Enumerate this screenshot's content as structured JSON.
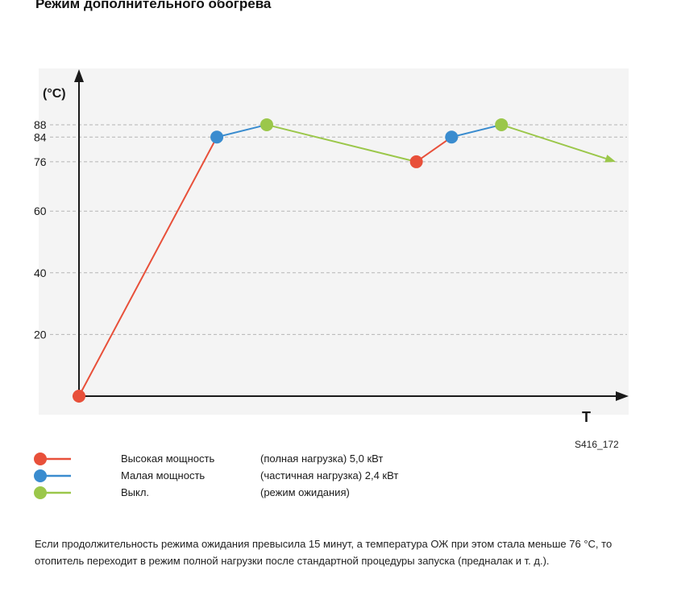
{
  "page": {
    "title": "Режим дополнительного обогрева",
    "figure_code": "S416_172",
    "note": "Если продолжительность режима ожидания превысила 15 минут, а температура ОЖ при этом стала меньше 76 °C, то отопитель переходит в режим полной нагрузки после стандартной процедуры запуска (предналак и т. д.)."
  },
  "legend": [
    {
      "name": "Высокая мощность",
      "desc": "(полная нагрузка) 5,0 кВт",
      "color": "#e8503a"
    },
    {
      "name": "Малая мощность",
      "desc": "(частичная нагрузка) 2,4 кВт",
      "color": "#3a8ccf"
    },
    {
      "name": "Выкл.",
      "desc": "(режим ожидания)",
      "color": "#9bc74a"
    }
  ],
  "chart_data": {
    "type": "line",
    "ylabel": "(°C)",
    "xlabel": "T",
    "y_ticks": [
      20,
      40,
      60,
      76,
      84,
      88
    ],
    "grid": true,
    "colors": {
      "high": "#e8503a",
      "low": "#3a8ccf",
      "off": "#9bc74a"
    },
    "points": [
      {
        "t": 0,
        "y": 0,
        "mode": "high"
      },
      {
        "t": 4.7,
        "y": 84,
        "mode": "low"
      },
      {
        "t": 6.4,
        "y": 88,
        "mode": "off"
      },
      {
        "t": 11.5,
        "y": 76,
        "mode": "high"
      },
      {
        "t": 12.7,
        "y": 84,
        "mode": "low"
      },
      {
        "t": 14.4,
        "y": 88,
        "mode": "off"
      },
      {
        "t": 18.3,
        "y": 76,
        "mode": "end"
      }
    ]
  }
}
